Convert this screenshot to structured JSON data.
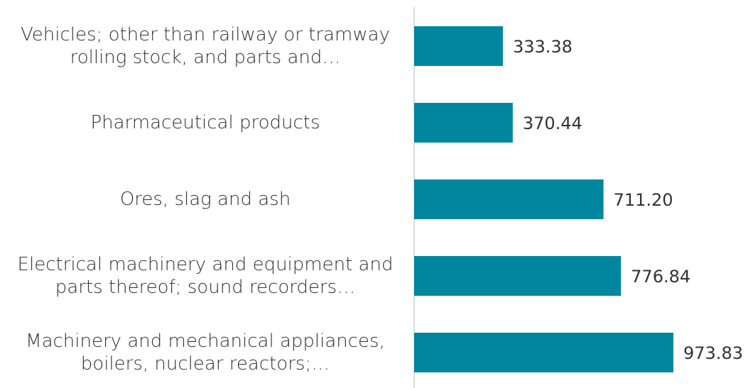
{
  "chart_data": {
    "type": "bar",
    "orientation": "horizontal",
    "categories": [
      "Vehicles; other than railway or tramway rolling stock, and parts and…",
      "Pharmaceutical products",
      "Ores, slag and ash",
      "Electrical machinery and equipment and parts thereof; sound recorders…",
      "Machinery and mechanical appliances, boilers, nuclear reactors;…"
    ],
    "values": [
      333.38,
      370.44,
      711.2,
      776.84,
      973.83
    ],
    "value_labels": [
      "333.38",
      "370.44",
      "711.20",
      "776.84",
      "973.83"
    ],
    "color": "#00879f"
  }
}
